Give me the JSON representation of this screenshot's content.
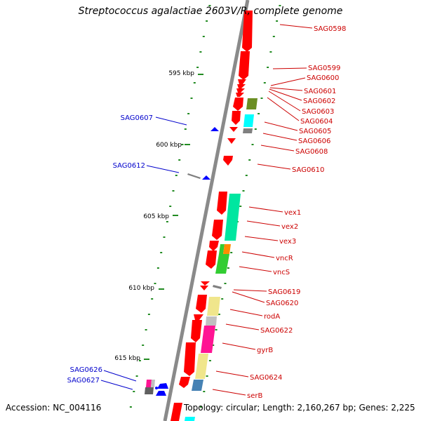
{
  "title": "Streptococcus agalactiae 2603V/R, complete genome",
  "accession": "Accession: NC_004116",
  "summary": "Topology: circular; Length: 2,160,267 bp; Genes: 2,225",
  "colors": {
    "backbone": "#8a8a8a",
    "forward_gene": "#ff0000",
    "reverse_gene": "#0000ff",
    "forward_label": "#cc0000",
    "reverse_label": "#0000cc",
    "tick": "#228b22",
    "olive": "#6b8e23",
    "aquamarine": "#00e6a0",
    "cyan": "#00ffff",
    "khaki": "#f0e68c",
    "grey": "#808080",
    "silver": "#c0c0c0",
    "pink": "#ff1493",
    "orange": "#ff8c00",
    "green": "#32cd32",
    "steel": "#4682b4"
  },
  "kbp_ticks": [
    "595 kbp",
    "600 kbp",
    "605 kbp",
    "610 kbp",
    "615 kbp"
  ],
  "forward_labels": [
    "SAG0598",
    "SAG0599",
    "SAG0600",
    "SAG0601",
    "SAG0602",
    "SAG0603",
    "SAG0604",
    "SAG0605",
    "SAG0606",
    "SAG0608",
    "SAG0610",
    "vex1",
    "vex2",
    "vex3",
    "vncR",
    "vncS",
    "SAG0619",
    "SAG0620",
    "rodA",
    "SAG0622",
    "gyrB",
    "SAG0624",
    "serB"
  ],
  "reverse_labels": [
    "SAG0607",
    "SAG0612",
    "SAG0626",
    "SAG0627"
  ]
}
